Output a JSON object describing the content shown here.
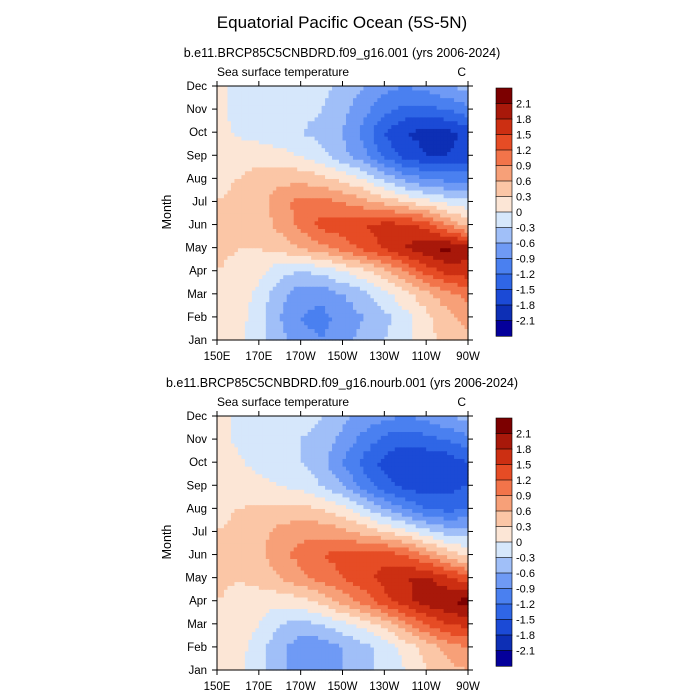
{
  "figure": {
    "title": "Equatorial Pacific Ocean (5S-5N)"
  },
  "colors": {
    "levels": [
      -2.1,
      -1.8,
      -1.5,
      -1.2,
      -0.9,
      -0.6,
      -0.3,
      0,
      0.3,
      0.6,
      0.9,
      1.2,
      1.5,
      1.8,
      2.1
    ],
    "palette": [
      "#04009a",
      "#0d2fb5",
      "#1b4ad6",
      "#2f66e6",
      "#4a80f0",
      "#6f9af5",
      "#a0bff8",
      "#d6e7fb",
      "#fce6d6",
      "#fbc6a6",
      "#f7a078",
      "#f2744a",
      "#e64c25",
      "#cc2f12",
      "#a8180a",
      "#7c0000"
    ]
  },
  "chart_data": [
    {
      "type": "heatmap",
      "subtitle": "b.e11.BRCP85C5CNBDRD.f09_g16.001 (yrs 2006-2024)",
      "left_label": "Sea surface temperature",
      "right_label": "C",
      "ylabel": "Month",
      "x_ticks": [
        "150E",
        "170E",
        "170W",
        "150W",
        "130W",
        "110W",
        "90W"
      ],
      "y_ticks": [
        "Jan",
        "Feb",
        "Mar",
        "Apr",
        "May",
        "Jun",
        "Jul",
        "Aug",
        "Sep",
        "Oct",
        "Nov",
        "Dec"
      ],
      "x_range_lon": [
        150,
        270
      ],
      "colorbar_labels": [
        "2.1",
        "1.8",
        "1.5",
        "1.2",
        "0.9",
        "0.6",
        "0.3",
        "0",
        "-0.3",
        "-0.6",
        "-0.9",
        "-1.2",
        "-1.5",
        "-1.8",
        "-2.1"
      ],
      "grid_lon": [
        150,
        160,
        170,
        180,
        190,
        200,
        210,
        220,
        230,
        240,
        250,
        260,
        270
      ],
      "values": [
        [
          0.2,
          0.1,
          -0.2,
          -0.5,
          -0.8,
          -0.9,
          -0.7,
          -0.5,
          -0.3,
          -0.1,
          0.2,
          0.4,
          0.5
        ],
        [
          0.25,
          0.15,
          -0.2,
          -0.6,
          -0.9,
          -1.0,
          -0.8,
          -0.6,
          -0.4,
          -0.1,
          0.2,
          0.5,
          0.7
        ],
        [
          0.3,
          0.2,
          -0.1,
          -0.5,
          -0.8,
          -0.8,
          -0.6,
          -0.4,
          -0.1,
          0.2,
          0.5,
          0.8,
          1.0
        ],
        [
          0.3,
          0.25,
          0.1,
          -0.2,
          -0.3,
          -0.2,
          0.0,
          0.2,
          0.5,
          0.9,
          1.3,
          1.6,
          1.7
        ],
        [
          0.35,
          0.3,
          0.3,
          0.4,
          0.6,
          0.8,
          1.0,
          1.3,
          1.55,
          1.8,
          2.05,
          2.2,
          1.9
        ],
        [
          0.3,
          0.3,
          0.4,
          0.7,
          1.0,
          1.3,
          1.4,
          1.5,
          1.6,
          1.6,
          1.4,
          0.9,
          0.5
        ],
        [
          0.3,
          0.35,
          0.45,
          0.8,
          1.0,
          1.0,
          0.9,
          0.7,
          0.5,
          0.3,
          0.1,
          -0.1,
          -0.2
        ],
        [
          0.25,
          0.3,
          0.4,
          0.5,
          0.5,
          0.4,
          0.2,
          0.0,
          -0.4,
          -0.7,
          -0.9,
          -1.0,
          -1.0
        ],
        [
          0.2,
          0.2,
          0.2,
          0.1,
          0.0,
          -0.2,
          -0.5,
          -0.8,
          -1.3,
          -1.6,
          -1.8,
          -1.8,
          -1.7
        ],
        [
          0.1,
          -0.05,
          -0.15,
          -0.2,
          -0.3,
          -0.4,
          -0.6,
          -1.0,
          -1.5,
          -1.8,
          -1.9,
          -1.9,
          -1.7
        ],
        [
          0.1,
          -0.1,
          -0.2,
          -0.2,
          -0.2,
          -0.3,
          -0.5,
          -0.8,
          -1.1,
          -1.3,
          -1.3,
          -1.2,
          -1.0
        ],
        [
          0.1,
          -0.1,
          -0.15,
          -0.2,
          -0.2,
          -0.2,
          -0.4,
          -0.6,
          -0.8,
          -0.9,
          -0.8,
          -0.6,
          -0.5
        ]
      ]
    },
    {
      "type": "heatmap",
      "subtitle": "b.e11.BRCP85C5CNBDRD.f09_g16.nourb.001 (yrs 2006-2024)",
      "left_label": "Sea surface temperature",
      "right_label": "C",
      "ylabel": "Month",
      "x_ticks": [
        "150E",
        "170E",
        "170W",
        "150W",
        "130W",
        "110W",
        "90W"
      ],
      "y_ticks": [
        "Jan",
        "Feb",
        "Mar",
        "Apr",
        "May",
        "Jun",
        "Jul",
        "Aug",
        "Sep",
        "Oct",
        "Nov",
        "Dec"
      ],
      "x_range_lon": [
        150,
        270
      ],
      "colorbar_labels": [
        "2.1",
        "1.8",
        "1.5",
        "1.2",
        "0.9",
        "0.6",
        "0.3",
        "0",
        "-0.3",
        "-0.6",
        "-0.9",
        "-1.2",
        "-1.5",
        "-1.8",
        "-2.1"
      ],
      "grid_lon": [
        150,
        160,
        170,
        180,
        190,
        200,
        210,
        220,
        230,
        240,
        250,
        260,
        270
      ],
      "values": [
        [
          0.2,
          0.1,
          -0.2,
          -0.5,
          -0.8,
          -0.8,
          -0.6,
          -0.4,
          -0.2,
          0.0,
          0.3,
          0.5,
          0.6
        ],
        [
          0.25,
          0.15,
          -0.2,
          -0.5,
          -0.8,
          -0.8,
          -0.6,
          -0.4,
          -0.2,
          0.1,
          0.4,
          0.7,
          0.9
        ],
        [
          0.3,
          0.2,
          0.0,
          -0.3,
          -0.4,
          -0.3,
          -0.1,
          0.1,
          0.4,
          0.8,
          1.2,
          1.5,
          1.6
        ],
        [
          0.3,
          0.25,
          0.15,
          0.1,
          0.2,
          0.4,
          0.7,
          1.0,
          1.4,
          1.7,
          1.95,
          2.1,
          2.2
        ],
        [
          0.35,
          0.3,
          0.4,
          0.6,
          0.8,
          1.0,
          1.2,
          1.4,
          1.6,
          1.8,
          1.85,
          1.6,
          1.3
        ],
        [
          0.3,
          0.35,
          0.5,
          0.8,
          1.0,
          1.2,
          1.3,
          1.4,
          1.4,
          1.2,
          0.9,
          0.5,
          0.2
        ],
        [
          0.3,
          0.35,
          0.5,
          0.7,
          0.8,
          0.8,
          0.7,
          0.5,
          0.3,
          0.1,
          -0.2,
          -0.4,
          -0.4
        ],
        [
          0.25,
          0.3,
          0.35,
          0.4,
          0.4,
          0.3,
          0.1,
          -0.2,
          -0.6,
          -0.9,
          -1.2,
          -1.3,
          -1.2
        ],
        [
          0.2,
          0.15,
          0.1,
          0.0,
          -0.1,
          -0.3,
          -0.6,
          -1.0,
          -1.4,
          -1.6,
          -1.7,
          -1.6,
          -1.5
        ],
        [
          0.15,
          0.05,
          -0.1,
          -0.2,
          -0.3,
          -0.5,
          -0.9,
          -1.3,
          -1.6,
          -1.8,
          -1.8,
          -1.7,
          -1.5
        ],
        [
          0.1,
          -0.05,
          -0.15,
          -0.2,
          -0.3,
          -0.4,
          -0.7,
          -1.0,
          -1.3,
          -1.4,
          -1.3,
          -1.2,
          -1.0
        ],
        [
          0.1,
          -0.05,
          -0.1,
          -0.2,
          -0.2,
          -0.3,
          -0.5,
          -0.7,
          -0.8,
          -0.9,
          -0.8,
          -0.6,
          -0.5
        ]
      ]
    }
  ]
}
